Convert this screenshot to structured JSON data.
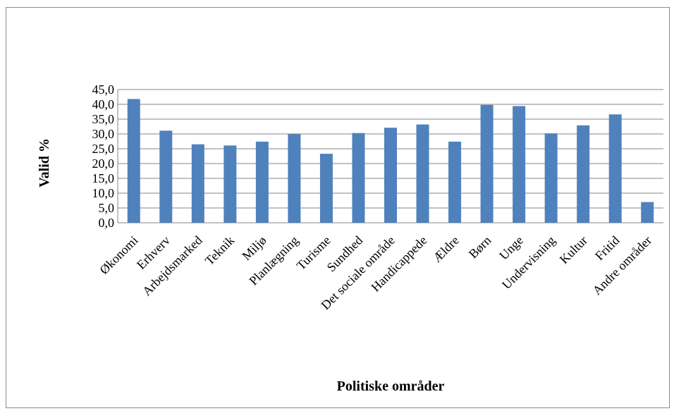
{
  "chart_data": {
    "type": "bar",
    "categories": [
      "Økonomi",
      "Erhverv",
      "Arbejdsmarked",
      "Teknik",
      "Miljø",
      "Planlægning",
      "Turisme",
      "Sundhed",
      "Det sociale område",
      "Handicappede",
      "Ældre",
      "Børn",
      "Unge",
      "Undervisning",
      "Kultur",
      "Fritid",
      "Andre områder"
    ],
    "values": [
      41.8,
      31.1,
      26.5,
      26.1,
      27.4,
      29.9,
      23.3,
      30.3,
      32.1,
      33.2,
      27.4,
      39.8,
      39.4,
      30.2,
      32.9,
      36.6,
      7.0
    ],
    "title": "",
    "xlabel": "Politiske områder",
    "ylabel": "Valid %",
    "ylim": [
      0,
      45
    ],
    "yticks": [
      "0,0",
      "5,0",
      "10,0",
      "15,0",
      "20,0",
      "25,0",
      "30,0",
      "35,0",
      "40,0",
      "45,0"
    ],
    "grid": true,
    "legend": "none",
    "bar_color": "#4f81bd",
    "grid_color": "#868686"
  }
}
